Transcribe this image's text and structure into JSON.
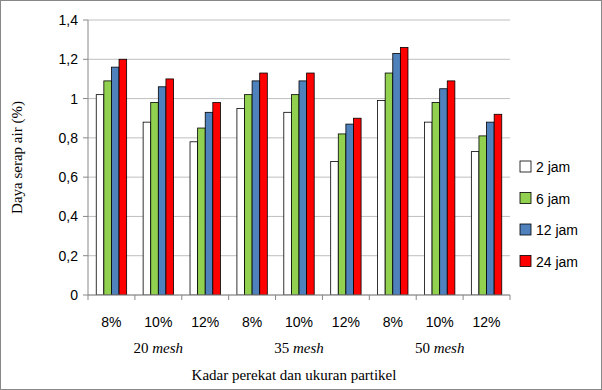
{
  "chart_data": {
    "type": "bar",
    "y_label": "Daya serap air (%)",
    "x_label": "Kadar perekat dan ukuran partikel",
    "categories": [
      "8%",
      "10%",
      "12%",
      "8%",
      "10%",
      "12%",
      "8%",
      "10%",
      "12%"
    ],
    "category_groups": [
      "20 mesh",
      "35 mesh",
      "50 mesh"
    ],
    "series": [
      {
        "name": "2 jam",
        "color": "#ffffff",
        "values": [
          1.02,
          0.88,
          0.78,
          0.95,
          0.93,
          0.68,
          0.99,
          0.88,
          0.73
        ]
      },
      {
        "name": "6 jam",
        "color": "#92d050",
        "values": [
          1.09,
          0.98,
          0.85,
          1.02,
          1.02,
          0.82,
          1.13,
          0.98,
          0.81
        ]
      },
      {
        "name": "12 jam",
        "color": "#4f81bd",
        "values": [
          1.16,
          1.06,
          0.93,
          1.09,
          1.09,
          0.87,
          1.23,
          1.05,
          0.88
        ]
      },
      {
        "name": "24 jam",
        "color": "#ff0000",
        "values": [
          1.2,
          1.1,
          0.98,
          1.13,
          1.13,
          0.9,
          1.26,
          1.09,
          0.92
        ]
      }
    ],
    "ylim": [
      0,
      1.4
    ],
    "yticks": [
      0,
      {
        "value": 0.2,
        "label": "0,2"
      },
      {
        "value": 0.4,
        "label": "0,4"
      },
      {
        "value": 0.6,
        "label": "0,6"
      },
      {
        "value": 0.8,
        "label": "0,8"
      },
      1,
      {
        "value": 1.2,
        "label": "1,2"
      },
      {
        "value": 1.4,
        "label": "1,4"
      }
    ],
    "grid": true,
    "legend": "right"
  }
}
